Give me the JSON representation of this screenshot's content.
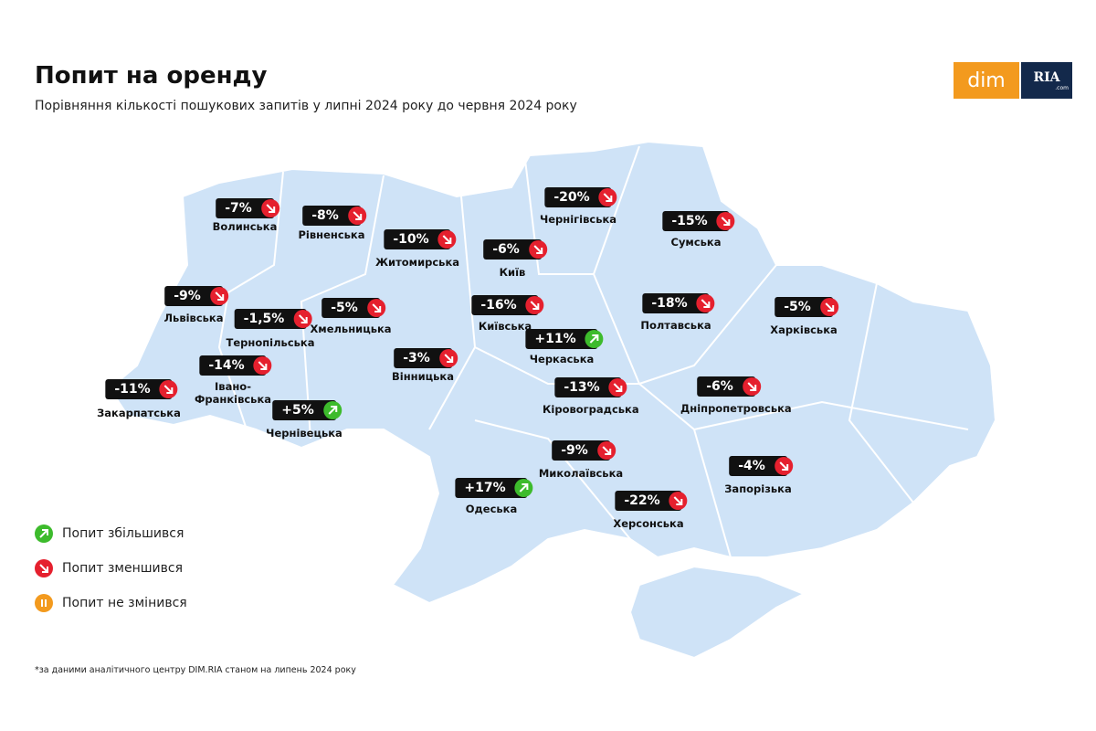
{
  "header": {
    "title": "Попит на оренду",
    "subtitle": "Порівняння кількості пошукових запитів у липні 2024 року до червня 2024 року"
  },
  "logo": {
    "left": "dim",
    "right": "RIA",
    "suffix": ".com"
  },
  "regions": [
    {
      "name": "Волинська",
      "change": "-7%",
      "trend": "down"
    },
    {
      "name": "Рівненська",
      "change": "-8%",
      "trend": "down"
    },
    {
      "name": "Житомирська",
      "change": "-10%",
      "trend": "down"
    },
    {
      "name": "Київ",
      "change": "-6%",
      "trend": "down"
    },
    {
      "name": "Чернігівська",
      "change": "-20%",
      "trend": "down"
    },
    {
      "name": "Сумська",
      "change": "-15%",
      "trend": "down"
    },
    {
      "name": "Львівська",
      "change": "-9%",
      "trend": "down"
    },
    {
      "name": "Тернопільська",
      "change": "-1,5%",
      "trend": "down"
    },
    {
      "name": "Хмельницька",
      "change": "-5%",
      "trend": "down"
    },
    {
      "name": "Київська",
      "change": "-16%",
      "trend": "down"
    },
    {
      "name": "Полтавська",
      "change": "-18%",
      "trend": "down"
    },
    {
      "name": "Харківська",
      "change": "-5%",
      "trend": "down"
    },
    {
      "name": "Черкаська",
      "change": "+11%",
      "trend": "up"
    },
    {
      "name": "Вінницька",
      "change": "-3%",
      "trend": "down"
    },
    {
      "name": "Івано-Франківська",
      "change": "-14%",
      "trend": "down"
    },
    {
      "name": "Закарпатська",
      "change": "-11%",
      "trend": "down"
    },
    {
      "name": "Чернівецька",
      "change": "+5%",
      "trend": "up"
    },
    {
      "name": "Кіровоградська",
      "change": "-13%",
      "trend": "down"
    },
    {
      "name": "Дніпропетровська",
      "change": "-6%",
      "trend": "down"
    },
    {
      "name": "Миколаївська",
      "change": "-9%",
      "trend": "down"
    },
    {
      "name": "Одеська",
      "change": "+17%",
      "trend": "up"
    },
    {
      "name": "Херсонська",
      "change": "-22%",
      "trend": "down"
    },
    {
      "name": "Запорізька",
      "change": "-4%",
      "trend": "down"
    }
  ],
  "legend": [
    {
      "label": "Попит збільшився",
      "trend": "up"
    },
    {
      "label": "Попит зменшився",
      "trend": "down"
    },
    {
      "label": "Попит не змінився",
      "trend": "same"
    }
  ],
  "footnote": "*за даними аналітичного центру DIM.RIA станом на липень 2024 року"
}
